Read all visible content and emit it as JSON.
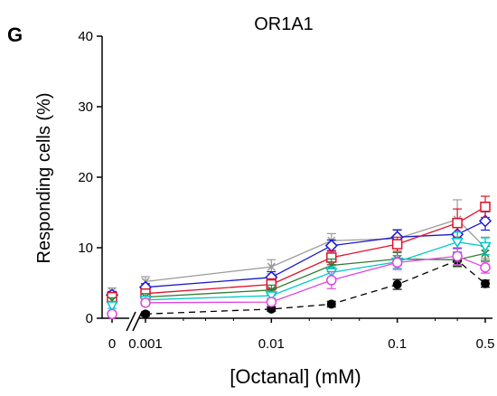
{
  "panel_label": "G",
  "chart_data": {
    "type": "line",
    "title": "OR1A1",
    "xlabel": "[Octanal] (mM)",
    "ylabel": "Responding cells (%)",
    "x_tick_labels": [
      "0",
      "0.001",
      "0.01",
      "0.1",
      "0.5"
    ],
    "x": [
      0,
      0.001,
      0.01,
      0.03,
      0.1,
      0.3,
      0.5
    ],
    "y_ticks": [
      0,
      10,
      20,
      30,
      40
    ],
    "ylim": [
      0,
      40
    ],
    "x_scale": "log with axis break between 0 and 0.001",
    "grid": false,
    "legend": "none",
    "series": [
      {
        "color": "#000000",
        "marker": "filled-circle",
        "line": "dashed",
        "values": [
          null,
          0.6,
          1.3,
          2.0,
          4.8,
          8.2,
          4.9
        ],
        "errors": [
          null,
          0.3,
          0.3,
          0.4,
          0.7,
          0.8,
          0.5
        ]
      },
      {
        "color": "#9b9b9b",
        "marker": "x",
        "line": "solid",
        "values": [
          3.8,
          5.2,
          7.3,
          11.0,
          11.3,
          14.0,
          10.0
        ],
        "errors": [
          0.5,
          0.7,
          1.0,
          1.0,
          1.3,
          2.8,
          1.5
        ]
      },
      {
        "color": "#1a1ad0",
        "marker": "open-diamond",
        "line": "solid",
        "values": [
          3.3,
          4.4,
          5.8,
          10.3,
          11.5,
          11.9,
          13.8
        ],
        "errors": [
          0.5,
          0.5,
          0.8,
          0.8,
          1.0,
          2.0,
          1.3
        ]
      },
      {
        "color": "#e0102a",
        "marker": "open-square",
        "line": "solid",
        "values": [
          3.0,
          3.5,
          4.8,
          8.6,
          10.5,
          13.5,
          15.8
        ],
        "errors": [
          0.5,
          0.5,
          0.8,
          1.0,
          1.0,
          2.0,
          1.5
        ]
      },
      {
        "color": "#2e7d32",
        "marker": "x",
        "line": "solid",
        "values": [
          2.5,
          3.0,
          4.0,
          7.5,
          8.4,
          8.3,
          9.2
        ],
        "errors": [
          0.4,
          0.5,
          0.7,
          0.9,
          0.9,
          1.0,
          1.0
        ]
      },
      {
        "color": "#00c8c8",
        "marker": "open-triangle",
        "line": "solid",
        "values": [
          1.8,
          2.6,
          3.2,
          6.5,
          8.0,
          10.8,
          10.2
        ],
        "errors": [
          0.4,
          0.5,
          0.6,
          0.8,
          0.9,
          1.4,
          1.2
        ]
      },
      {
        "color": "#e046e0",
        "marker": "open-circle",
        "line": "solid",
        "values": [
          0.6,
          2.2,
          2.3,
          5.4,
          7.9,
          8.8,
          7.2
        ],
        "errors": [
          0.3,
          0.4,
          0.5,
          1.2,
          1.0,
          1.2,
          0.8
        ]
      }
    ]
  }
}
